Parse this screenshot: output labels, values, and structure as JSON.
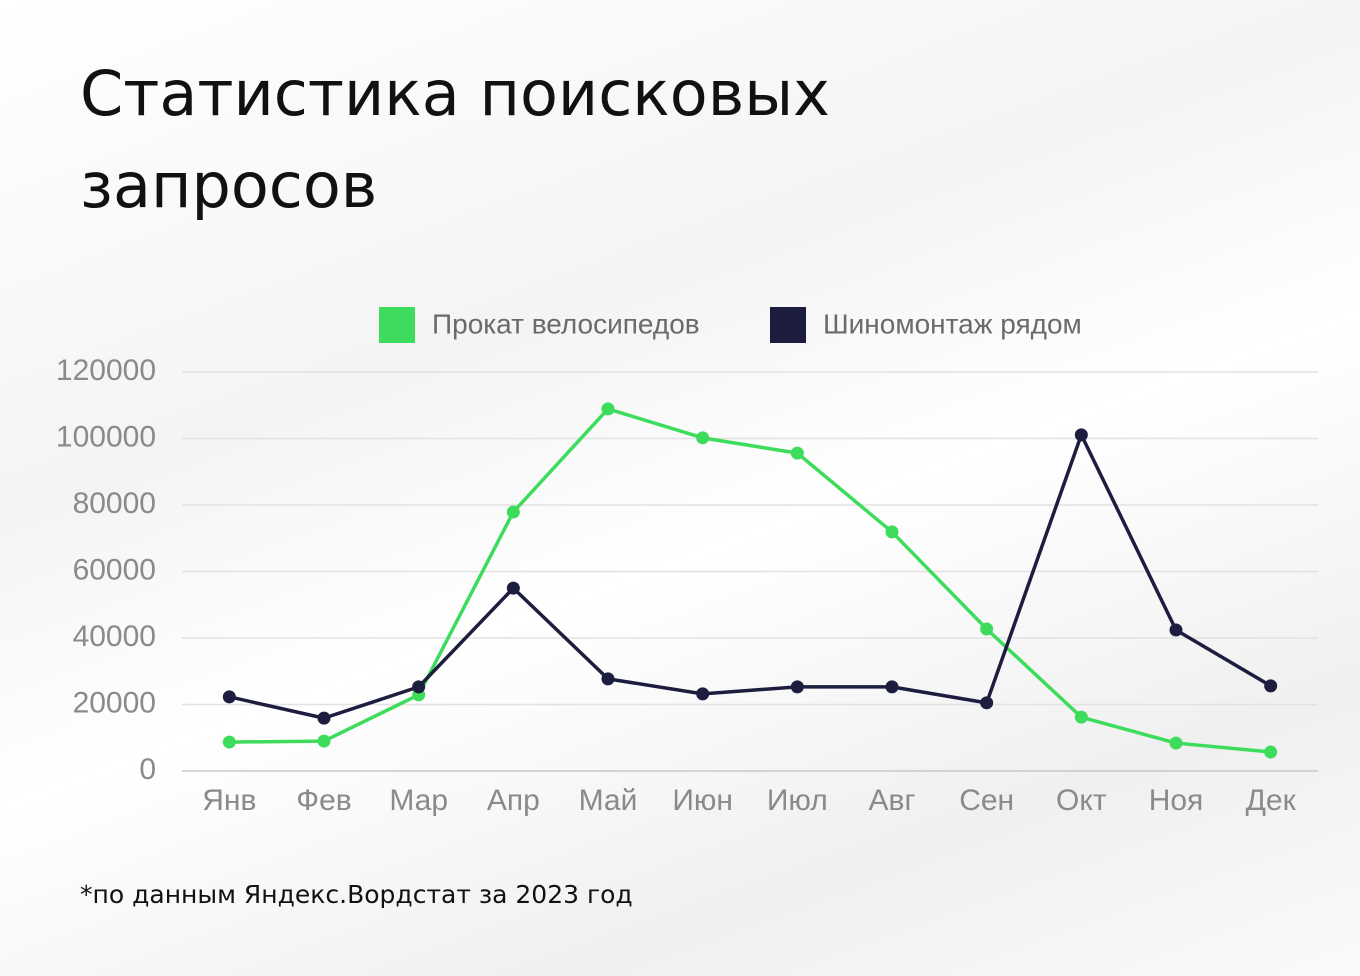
{
  "chart_data": {
    "type": "line",
    "title": "Статистика поисковых запросов",
    "note": "*по данным Яндекс.Вордстат за 2023 год",
    "categories": [
      "Янв",
      "Фев",
      "Мар",
      "Апр",
      "Май",
      "Июн",
      "Июл",
      "Авг",
      "Сен",
      "Окт",
      "Ноя",
      "Дек"
    ],
    "series": [
      {
        "name": "Прокат велосипедов",
        "color": "#3ddc5c",
        "values": [
          8700,
          9000,
          22900,
          77900,
          108900,
          100200,
          95600,
          71900,
          42700,
          16200,
          8400,
          5700
        ]
      },
      {
        "name": "Шиномонтаж рядом",
        "color": "#1c1d3f",
        "values": [
          22300,
          15900,
          25300,
          55000,
          27700,
          23200,
          25300,
          25300,
          20500,
          101100,
          42400,
          25600
        ]
      }
    ],
    "ylim": [
      0,
      120000
    ],
    "yticks": [
      0,
      20000,
      40000,
      60000,
      80000,
      100000,
      120000
    ],
    "grid": true,
    "legend": "top"
  }
}
